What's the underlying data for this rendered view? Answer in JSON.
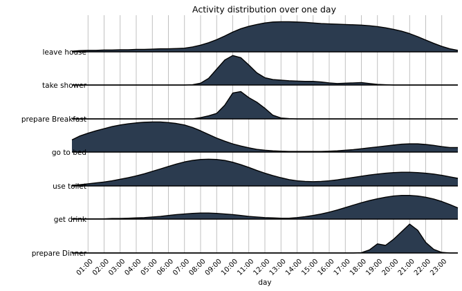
{
  "chart_data": {
    "type": "area",
    "subtype": "ridgeline",
    "title": "Activity distribution over one day",
    "xlabel": "day",
    "ylabel": "",
    "xlim": [
      0,
      24
    ],
    "x_ticks": [
      "01:00",
      "02:00",
      "03:00",
      "04:00",
      "05:00",
      "06:00",
      "07:00",
      "08:00",
      "09:00",
      "10:00",
      "11:00",
      "12:00",
      "13:00",
      "14:00",
      "15:00",
      "16:00",
      "17:00",
      "18:00",
      "19:00",
      "20:00",
      "21:00",
      "22:00",
      "23:00"
    ],
    "grid": "vertical",
    "fill_color": "#2b3b4f",
    "x": [
      0,
      0.5,
      1,
      1.5,
      2,
      2.5,
      3,
      3.5,
      4,
      4.5,
      5,
      5.5,
      6,
      6.5,
      7,
      7.5,
      8,
      8.5,
      9,
      9.5,
      10,
      10.5,
      11,
      11.5,
      12,
      12.5,
      13,
      13.5,
      14,
      14.5,
      15,
      15.5,
      16,
      16.5,
      17,
      17.5,
      18,
      18.5,
      19,
      19.5,
      20,
      20.5,
      21,
      21.5,
      22,
      22.5,
      23,
      23.5,
      24
    ],
    "series": [
      {
        "name": "leave house",
        "values": [
          0.02,
          0.04,
          0.05,
          0.05,
          0.06,
          0.06,
          0.07,
          0.07,
          0.08,
          0.08,
          0.09,
          0.1,
          0.1,
          0.11,
          0.12,
          0.16,
          0.22,
          0.3,
          0.4,
          0.52,
          0.65,
          0.76,
          0.84,
          0.9,
          0.95,
          0.98,
          0.99,
          0.99,
          0.98,
          0.97,
          0.95,
          0.93,
          0.92,
          0.91,
          0.9,
          0.89,
          0.88,
          0.86,
          0.83,
          0.79,
          0.74,
          0.68,
          0.6,
          0.5,
          0.39,
          0.28,
          0.18,
          0.1,
          0.05
        ]
      },
      {
        "name": "take shower",
        "values": [
          0,
          0,
          0,
          0,
          0,
          0,
          0,
          0,
          0,
          0,
          0,
          0,
          0,
          0,
          0,
          0.01,
          0.06,
          0.22,
          0.52,
          0.82,
          0.97,
          0.9,
          0.66,
          0.4,
          0.24,
          0.18,
          0.16,
          0.14,
          0.13,
          0.12,
          0.12,
          0.1,
          0.07,
          0.05,
          0.06,
          0.07,
          0.08,
          0.05,
          0.02,
          0.01,
          0,
          0,
          0,
          0,
          0,
          0,
          0,
          0,
          0
        ]
      },
      {
        "name": "prepare Breakfast",
        "values": [
          0,
          0,
          0,
          0,
          0,
          0,
          0,
          0,
          0,
          0,
          0,
          0,
          0,
          0,
          0,
          0,
          0.04,
          0.1,
          0.18,
          0.45,
          0.85,
          0.9,
          0.7,
          0.55,
          0.35,
          0.12,
          0.03,
          0.01,
          0,
          0,
          0,
          0,
          0,
          0,
          0,
          0,
          0,
          0,
          0,
          0,
          0,
          0,
          0,
          0,
          0,
          0,
          0,
          0,
          0
        ]
      },
      {
        "name": "go to bed",
        "values": [
          0.4,
          0.53,
          0.62,
          0.7,
          0.77,
          0.84,
          0.89,
          0.93,
          0.96,
          0.98,
          0.99,
          0.99,
          0.97,
          0.94,
          0.89,
          0.81,
          0.7,
          0.58,
          0.46,
          0.36,
          0.27,
          0.2,
          0.14,
          0.09,
          0.06,
          0.04,
          0.03,
          0.02,
          0.02,
          0.02,
          0.02,
          0.02,
          0.03,
          0.04,
          0.06,
          0.08,
          0.11,
          0.14,
          0.17,
          0.2,
          0.23,
          0.26,
          0.27,
          0.27,
          0.25,
          0.22,
          0.18,
          0.15,
          0.15
        ]
      },
      {
        "name": "use toilet",
        "values": [
          0.02,
          0.04,
          0.07,
          0.1,
          0.13,
          0.17,
          0.22,
          0.27,
          0.33,
          0.4,
          0.48,
          0.56,
          0.64,
          0.72,
          0.79,
          0.84,
          0.87,
          0.88,
          0.87,
          0.84,
          0.78,
          0.7,
          0.61,
          0.51,
          0.42,
          0.34,
          0.27,
          0.21,
          0.17,
          0.15,
          0.14,
          0.15,
          0.17,
          0.2,
          0.24,
          0.28,
          0.32,
          0.36,
          0.39,
          0.42,
          0.44,
          0.45,
          0.45,
          0.44,
          0.42,
          0.39,
          0.35,
          0.3,
          0.25
        ]
      },
      {
        "name": "get drink",
        "values": [
          0.01,
          0.01,
          0.01,
          0.01,
          0.01,
          0.02,
          0.02,
          0.03,
          0.04,
          0.05,
          0.07,
          0.09,
          0.12,
          0.15,
          0.17,
          0.19,
          0.2,
          0.2,
          0.19,
          0.17,
          0.15,
          0.12,
          0.09,
          0.07,
          0.05,
          0.04,
          0.03,
          0.03,
          0.05,
          0.08,
          0.12,
          0.17,
          0.23,
          0.3,
          0.38,
          0.46,
          0.54,
          0.61,
          0.67,
          0.72,
          0.76,
          0.78,
          0.78,
          0.76,
          0.72,
          0.66,
          0.58,
          0.48,
          0.37
        ]
      },
      {
        "name": "prepare Dinner",
        "values": [
          0,
          0,
          0,
          0,
          0,
          0,
          0,
          0,
          0,
          0,
          0,
          0,
          0,
          0,
          0,
          0,
          0,
          0,
          0,
          0,
          0,
          0,
          0,
          0,
          0,
          0,
          0,
          0,
          0,
          0,
          0,
          0,
          0,
          0,
          0,
          0,
          0.01,
          0.1,
          0.3,
          0.25,
          0.45,
          0.7,
          0.95,
          0.75,
          0.35,
          0.12,
          0.02,
          0,
          0
        ]
      }
    ]
  }
}
